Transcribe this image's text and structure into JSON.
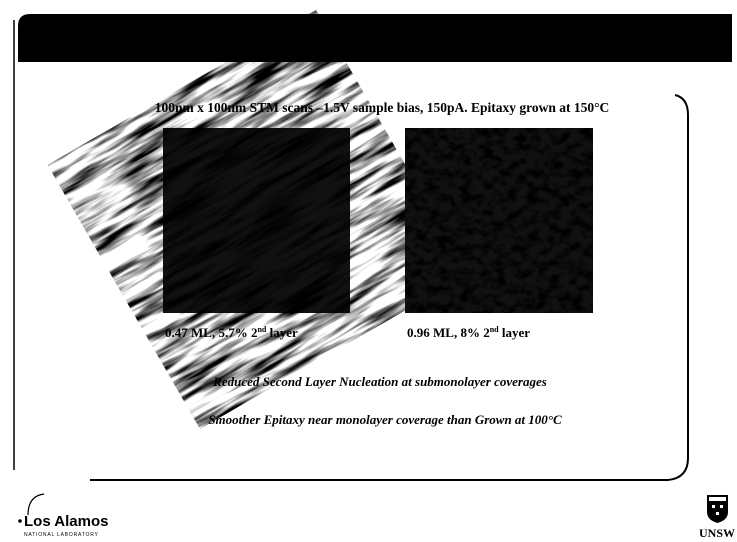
{
  "slide": {
    "subtitle": "100nm x 100nm STM scans –1.5V sample bias, 150pA. Epitaxy grown at 150°C",
    "images": [
      {
        "caption": {
          "main": "0.47 ML, 5.7% 2",
          "sup": "nd",
          "rest": " layer"
        }
      },
      {
        "caption": {
          "main": "0.96 ML, 8% 2",
          "sup": "nd",
          "rest": " layer"
        }
      }
    ],
    "notes": [
      "Reduced Second Layer Nucleation at submonolayer coverages",
      "Smoother Epitaxy near monolayer coverage than Grown at 100°C"
    ],
    "logos": {
      "left": "Los Alamos",
      "left_sub": "NATIONAL LABORATORY",
      "right": "UNSW"
    }
  }
}
